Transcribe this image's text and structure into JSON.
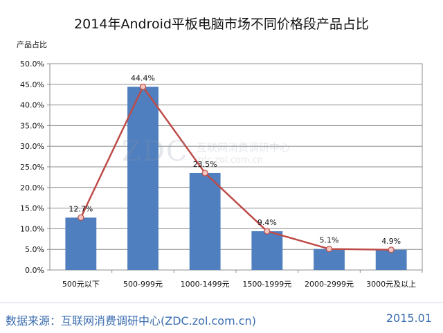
{
  "chart_data": {
    "type": "bar",
    "title": "2014年Android平板电脑市场不同价格段产品占比",
    "ylabel": "产品占比",
    "xlabel": "",
    "categories": [
      "500元以下",
      "500-999元",
      "1000-1499元",
      "1500-1999元",
      "2000-2999元",
      "3000元及以上"
    ],
    "values": [
      12.7,
      44.4,
      23.5,
      9.4,
      5.1,
      4.9
    ],
    "data_labels": [
      "12.7%",
      "44.4%",
      "23.5%",
      "9.4%",
      "5.1%",
      "4.9%"
    ],
    "ylim": [
      0,
      50
    ],
    "yticks": [
      "0.0%",
      "5.0%",
      "10.0%",
      "15.0%",
      "20.0%",
      "25.0%",
      "30.0%",
      "35.0%",
      "40.0%",
      "45.0%",
      "50.0%"
    ],
    "grid": true,
    "overlay_line": true,
    "colors": {
      "bar": "#4f7fbe",
      "line": "#be4b48",
      "marker_fill": "#f4c7c3"
    }
  },
  "watermark": {
    "logo": "ZDC",
    "name": "互联网消费调研中心",
    "url": "zdc.zol.com.cn"
  },
  "footer": {
    "source": "数据来源：互联网消费调研中心(ZDC.zol.com.cn)",
    "date": "2015.01"
  }
}
